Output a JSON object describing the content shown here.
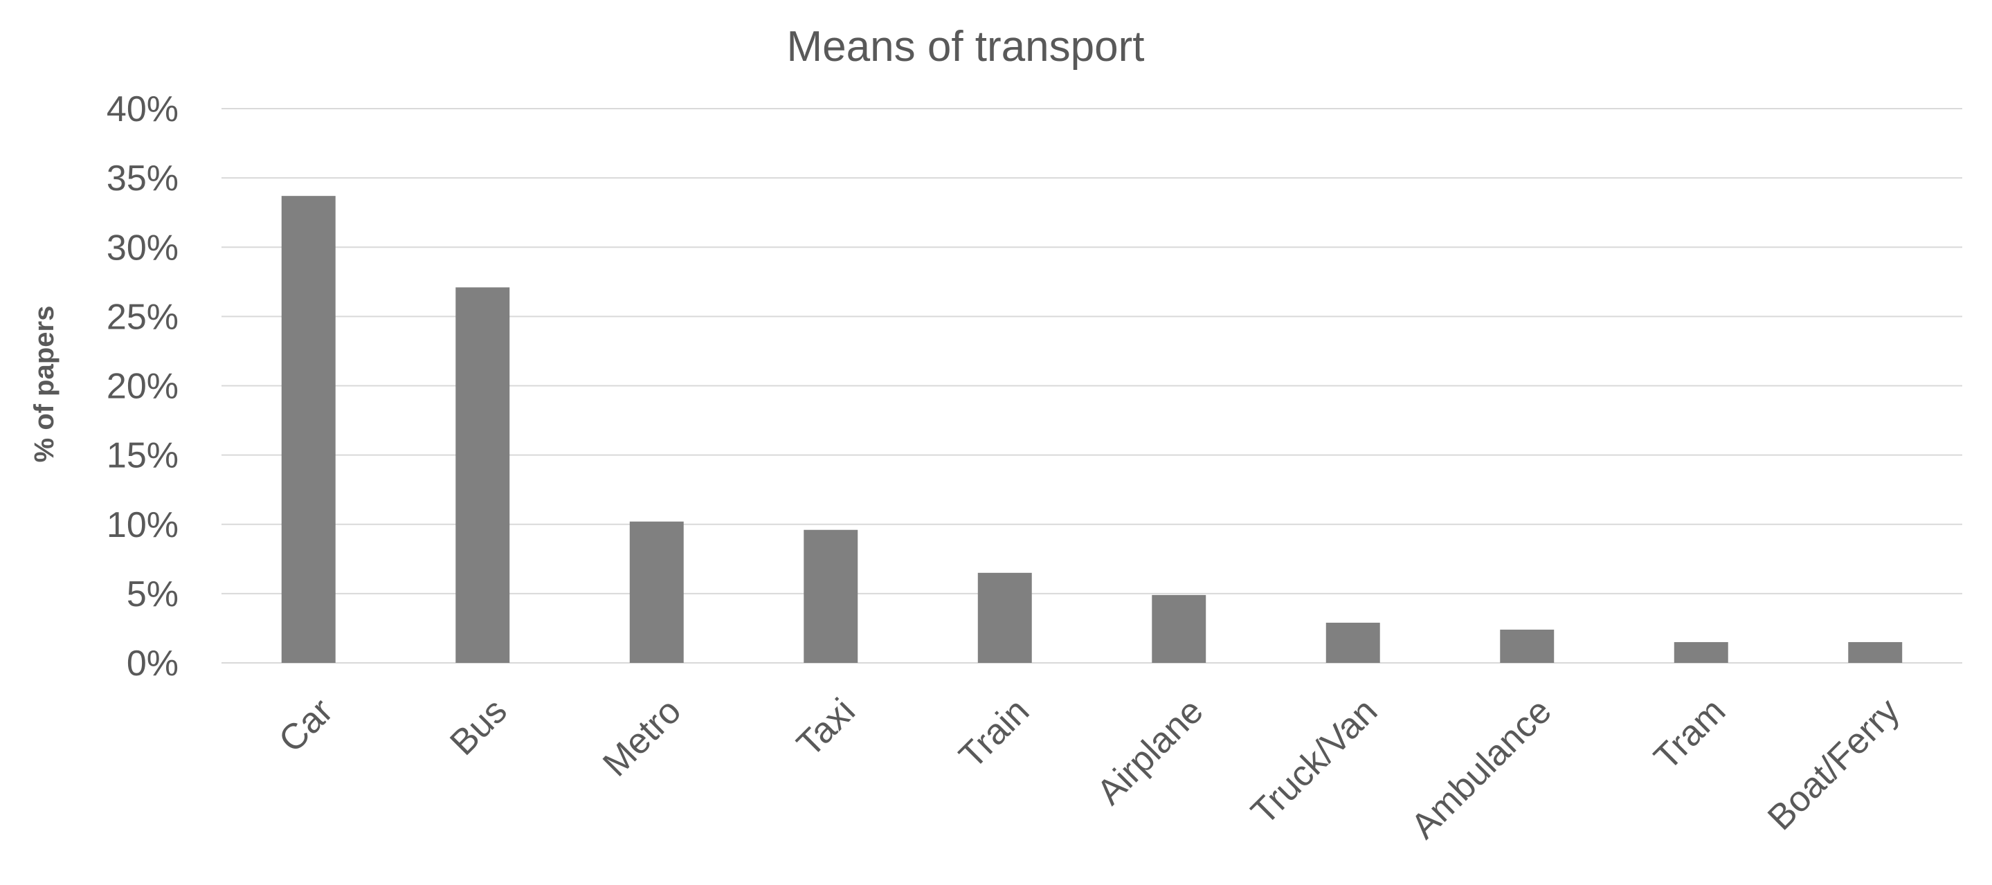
{
  "chart_data": {
    "type": "bar",
    "title": "Means of transport",
    "xlabel": "",
    "ylabel": "% of papers",
    "categories": [
      "Car",
      "Bus",
      "Metro",
      "Taxi",
      "Train",
      "Airplane",
      "Truck/Van",
      "Ambulance",
      "Tram",
      "Boat/Ferry"
    ],
    "values": [
      33.7,
      27.1,
      10.2,
      9.6,
      6.5,
      4.9,
      2.9,
      2.4,
      1.5,
      1.5
    ],
    "ylim": [
      0,
      40
    ],
    "yticks": [
      0,
      5,
      10,
      15,
      20,
      25,
      30,
      35,
      40
    ],
    "ytick_labels": [
      "0%",
      "5%",
      "10%",
      "15%",
      "20%",
      "25%",
      "30%",
      "35%",
      "40%"
    ],
    "grid": true,
    "legend": "none",
    "colors": {
      "bar": "#808080",
      "grid": "#d9d9d9",
      "text": "#595959"
    }
  }
}
